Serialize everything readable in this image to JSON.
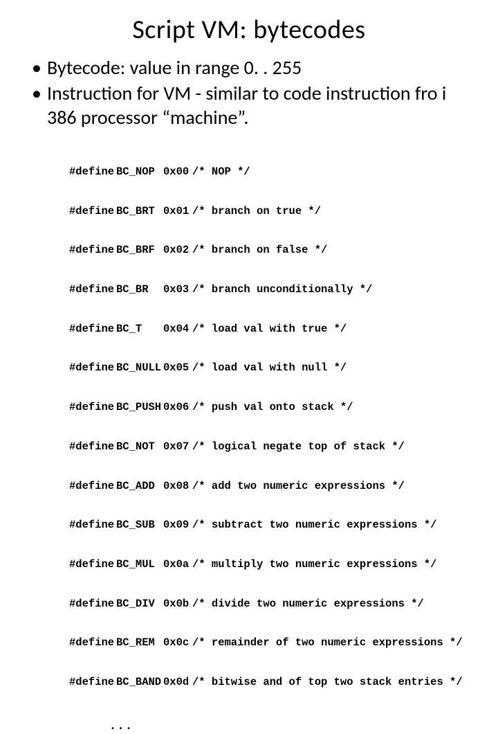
{
  "title": "Script VM: bytecodes",
  "bullets": [
    "Bytecode: value in range 0. . 255",
    "Instruction for VM - similar to code instruction fro i 386 processor “machine”."
  ],
  "code": {
    "keyword": "#define",
    "rows": [
      {
        "name": "BC_NOP",
        "hex": "0x00",
        "comment": "/* NOP */"
      },
      {
        "name": "BC_BRT",
        "hex": "0x01",
        "comment": "/* branch on true */"
      },
      {
        "name": "BC_BRF",
        "hex": "0x02",
        "comment": "/* branch on false */"
      },
      {
        "name": "BC_BR",
        "hex": "0x03",
        "comment": "/* branch unconditionally */"
      },
      {
        "name": "BC_T",
        "hex": "0x04",
        "comment": "/* load val with true */"
      },
      {
        "name": "BC_NULL",
        "hex": "0x05",
        "comment": "/* load val with null */"
      },
      {
        "name": "BC_PUSH",
        "hex": "0x06",
        "comment": "/* push val onto stack */"
      },
      {
        "name": "BC_NOT",
        "hex": "0x07",
        "comment": "/* logical negate top of stack */"
      },
      {
        "name": "BC_ADD",
        "hex": "0x08",
        "comment": "/* add two numeric expressions */"
      },
      {
        "name": "BC_SUB",
        "hex": "0x09",
        "comment": "/* subtract two numeric expressions */"
      },
      {
        "name": "BC_MUL",
        "hex": "0x0a",
        "comment": "/* multiply two numeric expressions */"
      },
      {
        "name": "BC_DIV",
        "hex": "0x0b",
        "comment": "/* divide two numeric expressions */"
      },
      {
        "name": "BC_REM",
        "hex": "0x0c",
        "comment": "/* remainder of two numeric expressions */"
      },
      {
        "name": "BC_BAND",
        "hex": "0x0d",
        "comment": "/* bitwise and of top two stack entries */"
      }
    ],
    "ellipsis": ". . ."
  },
  "style": {
    "background": "#ffffff",
    "text_color": "#000000",
    "title_fontsize": 38,
    "bullet_fontsize": 28,
    "code_fontsize": 15.5,
    "code_font": "Courier New",
    "body_font": "Calibri"
  }
}
